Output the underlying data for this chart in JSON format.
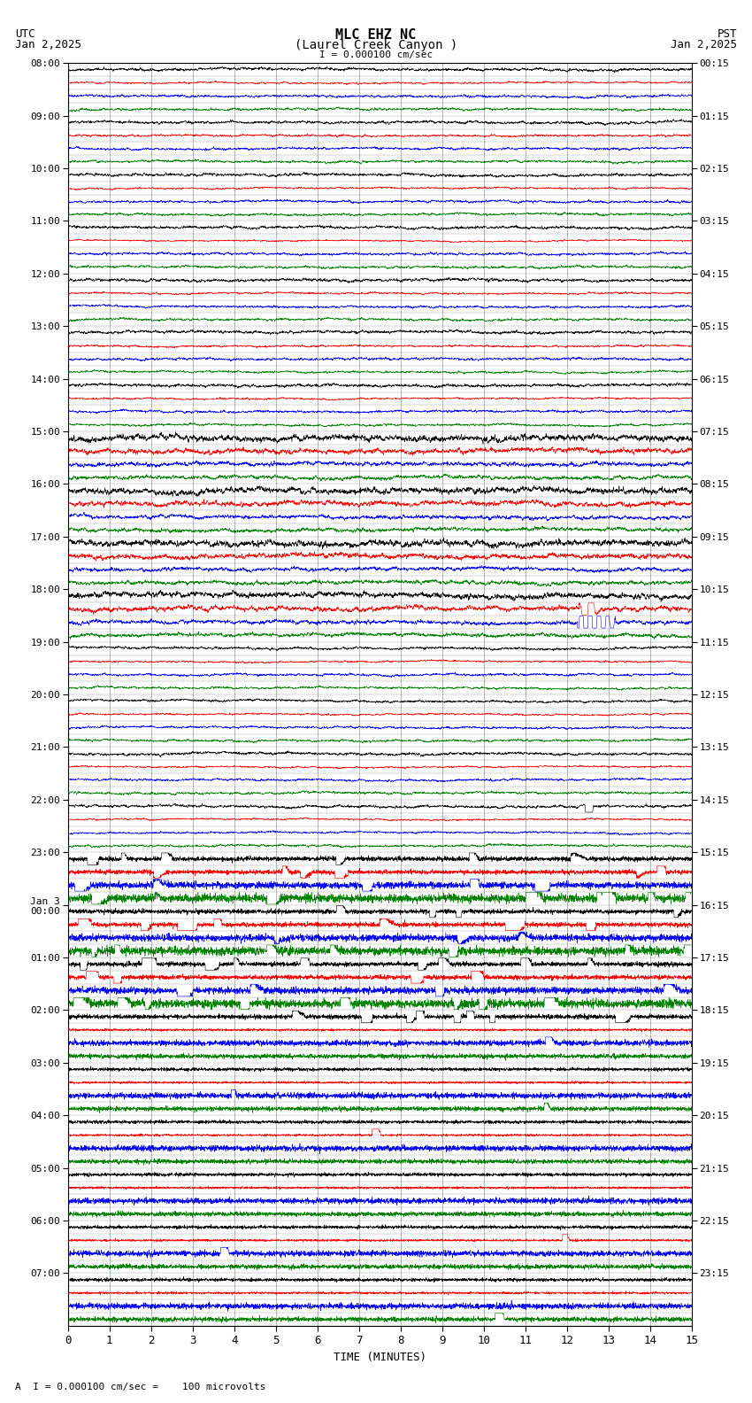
{
  "title_line1": "MLC EHZ NC",
  "title_line2": "(Laurel Creek Canyon )",
  "scale_text": "I = 0.000100 cm/sec",
  "utc_label": "UTC",
  "pst_label": "PST",
  "date_left": "Jan 2,2025",
  "date_right": "Jan 2,2025",
  "xlabel": "TIME (MINUTES)",
  "bottom_note": "A  I = 0.000100 cm/sec =    100 microvolts",
  "xmin": 0,
  "xmax": 15,
  "bg_color": "#ffffff",
  "noise_seed": 42,
  "trace_colors_cycle": [
    "black",
    "red",
    "blue",
    "green"
  ],
  "utc_hour_labels": [
    "08:00",
    "09:00",
    "10:00",
    "11:00",
    "12:00",
    "13:00",
    "14:00",
    "15:00",
    "16:00",
    "17:00",
    "18:00",
    "19:00",
    "20:00",
    "21:00",
    "22:00",
    "23:00",
    "Jan 3\n00:00",
    "01:00",
    "02:00",
    "03:00",
    "04:00",
    "05:00",
    "06:00",
    "07:00"
  ],
  "pst_hour_labels": [
    "00:15",
    "01:15",
    "02:15",
    "03:15",
    "04:15",
    "05:15",
    "06:15",
    "07:15",
    "08:15",
    "09:15",
    "10:15",
    "11:15",
    "12:15",
    "13:15",
    "14:15",
    "15:15",
    "16:15",
    "17:15",
    "18:15",
    "19:15",
    "20:15",
    "21:15",
    "22:15",
    "23:15"
  ],
  "num_hours": 24,
  "rows_per_hour": 4
}
